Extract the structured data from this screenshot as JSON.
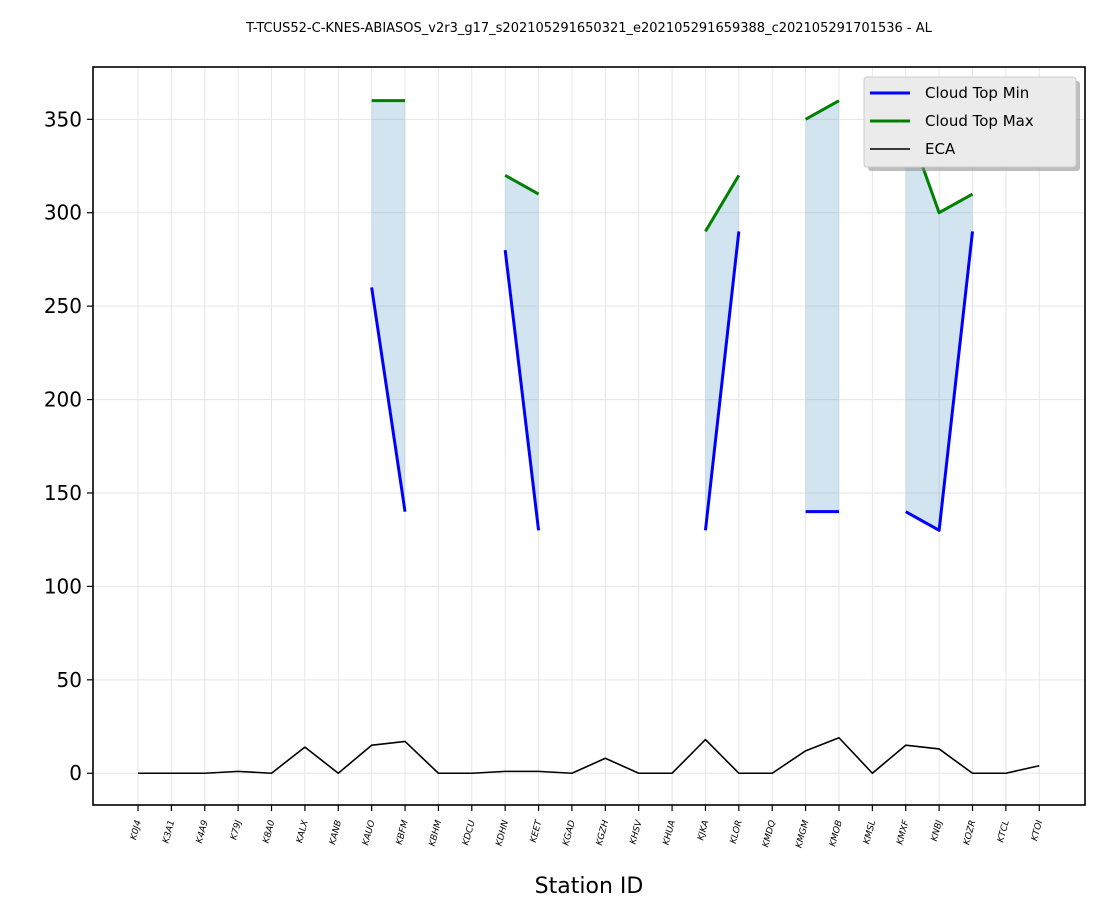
{
  "chart_data": {
    "type": "line",
    "title": "T-TCUS52-C-KNES-ABIASOS_v2r3_g17_s202105291650321_e202105291659388_c202105291701536 - AL",
    "xlabel": "Station ID",
    "ylabel": "",
    "ylim": [
      -17,
      378
    ],
    "yticks": [
      0,
      50,
      100,
      150,
      200,
      250,
      300,
      350
    ],
    "grid": true,
    "legend_position": "top-right",
    "categories": [
      "K0J4",
      "K3A1",
      "K4A9",
      "K79J",
      "K8A0",
      "KALX",
      "KANB",
      "KAUO",
      "KBFM",
      "KBHM",
      "KDCU",
      "KDHN",
      "KEET",
      "KGAD",
      "KGZH",
      "KHSV",
      "KHUA",
      "KJKA",
      "KLOR",
      "KMDQ",
      "KMGM",
      "KMOB",
      "KMSL",
      "KMXF",
      "KNBJ",
      "KOZR",
      "KTCL",
      "KTOI"
    ],
    "series": [
      {
        "name": "Cloud Top Min",
        "color": "#0000ff",
        "width": 3,
        "values": [
          null,
          null,
          null,
          null,
          null,
          null,
          null,
          260,
          140,
          null,
          null,
          280,
          130,
          null,
          null,
          null,
          null,
          130,
          290,
          null,
          140,
          140,
          null,
          140,
          130,
          290,
          null,
          null
        ]
      },
      {
        "name": "Cloud Top Max",
        "color": "#008000",
        "width": 3,
        "values": [
          null,
          null,
          null,
          null,
          null,
          null,
          null,
          360,
          360,
          null,
          null,
          320,
          310,
          null,
          null,
          null,
          null,
          290,
          320,
          null,
          350,
          360,
          null,
          350,
          300,
          310,
          null,
          null
        ]
      },
      {
        "name": "ECA",
        "color": "#000000",
        "width": 1.6,
        "values": [
          0,
          0,
          0,
          1,
          0,
          14,
          0,
          15,
          17,
          0,
          0,
          1,
          1,
          0,
          8,
          0,
          0,
          18,
          0,
          0,
          12,
          19,
          0,
          15,
          13,
          0,
          0,
          4
        ]
      }
    ],
    "fill_between": {
      "lower": "Cloud Top Min",
      "upper": "Cloud Top Max",
      "color": "#1f77b4",
      "opacity": 0.2
    }
  }
}
